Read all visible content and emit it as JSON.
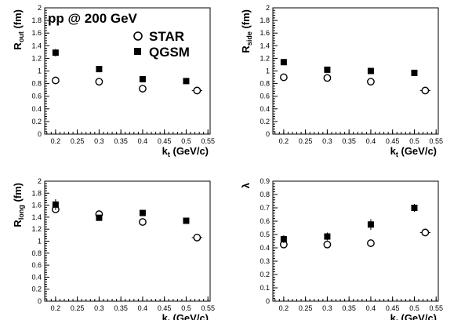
{
  "figure": {
    "title": "pp @ 200 GeV",
    "legend": [
      {
        "name": "STAR",
        "marker": "open-circle"
      },
      {
        "name": "QGSM",
        "marker": "filled-square"
      }
    ]
  },
  "chart_data": [
    {
      "type": "scatter",
      "ylabel": {
        "main": "R",
        "sub": "out",
        "unit": "(fm)"
      },
      "xlabel": {
        "main": "k",
        "sub": "t",
        "unit": "(GeV/c)"
      },
      "xlim": [
        0.175,
        0.555
      ],
      "ylim": [
        0,
        2
      ],
      "x_ticks": [
        "0.2",
        "0.25",
        "0.3",
        "0.35",
        "0.4",
        "0.45",
        "0.5",
        "0.55"
      ],
      "y_ticks": [
        "0",
        "0.2",
        "0.4",
        "0.6",
        "0.8",
        "1",
        "1.2",
        "1.4",
        "1.6",
        "1.8",
        "2"
      ],
      "series": [
        {
          "name": "STAR",
          "marker": "open-circle",
          "x": [
            0.2,
            0.3,
            0.4,
            0.525
          ],
          "y": [
            0.85,
            0.83,
            0.72,
            0.69
          ],
          "xerr": [
            0.008,
            0.008,
            0.008,
            0.012
          ],
          "yerr": [
            0.03,
            0.03,
            0.03,
            0.03
          ]
        },
        {
          "name": "QGSM",
          "marker": "filled-square",
          "x": [
            0.2,
            0.3,
            0.4,
            0.5
          ],
          "y": [
            1.29,
            1.03,
            0.87,
            0.84
          ],
          "yerr": [
            0.06,
            0.05,
            0.04,
            0.03
          ]
        }
      ]
    },
    {
      "type": "scatter",
      "ylabel": {
        "main": "R",
        "sub": "side",
        "unit": "(fm)"
      },
      "xlabel": {
        "main": "k",
        "sub": "t",
        "unit": "(GeV/c)"
      },
      "xlim": [
        0.175,
        0.555
      ],
      "ylim": [
        0,
        2
      ],
      "x_ticks": [
        "0.2",
        "0.25",
        "0.3",
        "0.35",
        "0.4",
        "0.45",
        "0.5",
        "0.55"
      ],
      "y_ticks": [
        "0",
        "0.2",
        "0.4",
        "0.6",
        "0.8",
        "1",
        "1.2",
        "1.4",
        "1.6",
        "1.8",
        "2"
      ],
      "series": [
        {
          "name": "STAR",
          "marker": "open-circle",
          "x": [
            0.2,
            0.3,
            0.4,
            0.525
          ],
          "y": [
            0.9,
            0.89,
            0.83,
            0.69
          ],
          "xerr": [
            0.008,
            0.008,
            0.008,
            0.012
          ],
          "yerr": [
            0.03,
            0.03,
            0.03,
            0.03
          ]
        },
        {
          "name": "QGSM",
          "marker": "filled-square",
          "x": [
            0.2,
            0.3,
            0.4,
            0.5
          ],
          "y": [
            1.14,
            1.02,
            1.0,
            0.97
          ],
          "yerr": [
            0.03,
            0.03,
            0.03,
            0.03
          ]
        }
      ]
    },
    {
      "type": "scatter",
      "ylabel": {
        "main": "R",
        "sub": "long",
        "unit": "(fm)"
      },
      "xlabel": {
        "main": "k",
        "sub": "t",
        "unit": "(GeV/c)"
      },
      "xlim": [
        0.175,
        0.555
      ],
      "ylim": [
        0,
        2
      ],
      "x_ticks": [
        "0.2",
        "0.25",
        "0.3",
        "0.35",
        "0.4",
        "0.45",
        "0.5",
        "0.55"
      ],
      "y_ticks": [
        "0",
        "0.2",
        "0.4",
        "0.6",
        "0.8",
        "1",
        "1.2",
        "1.4",
        "1.6",
        "1.8",
        "2"
      ],
      "series": [
        {
          "name": "STAR",
          "marker": "open-circle",
          "x": [
            0.2,
            0.3,
            0.4,
            0.525
          ],
          "y": [
            1.53,
            1.45,
            1.32,
            1.06
          ],
          "xerr": [
            0.008,
            0.008,
            0.008,
            0.012
          ],
          "yerr": [
            0.04,
            0.04,
            0.04,
            0.03
          ]
        },
        {
          "name": "QGSM",
          "marker": "filled-square",
          "x": [
            0.2,
            0.3,
            0.4,
            0.5
          ],
          "y": [
            1.61,
            1.39,
            1.47,
            1.34
          ],
          "yerr": [
            0.09,
            0.05,
            0.04,
            0.05
          ]
        }
      ]
    },
    {
      "type": "scatter",
      "ylabel": {
        "main": "λ",
        "sub": "",
        "unit": ""
      },
      "xlabel": {
        "main": "k",
        "sub": "t",
        "unit": "(GeV/c)"
      },
      "xlim": [
        0.175,
        0.555
      ],
      "ylim": [
        0,
        0.9
      ],
      "x_ticks": [
        "0.2",
        "0.25",
        "0.3",
        "0.35",
        "0.4",
        "0.45",
        "0.5",
        "0.55"
      ],
      "y_ticks": [
        "0",
        "0.1",
        "0.2",
        "0.3",
        "0.4",
        "0.5",
        "0.6",
        "0.7",
        "0.8",
        "0.9"
      ],
      "series": [
        {
          "name": "STAR",
          "marker": "open-circle",
          "x": [
            0.2,
            0.3,
            0.4,
            0.525
          ],
          "y": [
            0.425,
            0.425,
            0.435,
            0.515
          ],
          "xerr": [
            0.008,
            0.008,
            0.008,
            0.012
          ],
          "yerr": [
            0.015,
            0.015,
            0.015,
            0.015
          ]
        },
        {
          "name": "QGSM",
          "marker": "filled-square",
          "x": [
            0.2,
            0.3,
            0.4,
            0.5
          ],
          "y": [
            0.465,
            0.485,
            0.575,
            0.7
          ],
          "yerr": [
            0.03,
            0.03,
            0.04,
            0.03
          ]
        }
      ]
    }
  ]
}
